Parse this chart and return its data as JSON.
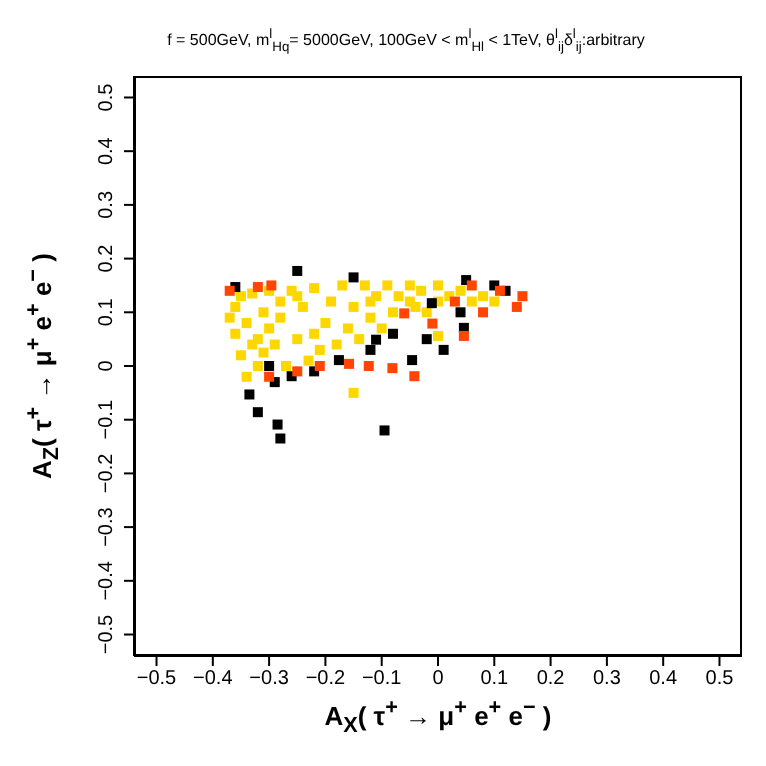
{
  "chart_data": {
    "type": "scatter",
    "title": "f = 500GeV, m$^{l}$$_{Hq}$= 5000GeV, 100GeV < m$^{l}$$_{Hl}$ < 1TeV, θ$^{l}$$_{ij}$δ$^{l}$$_{ij}$:arbitrary",
    "xlabel": "A$_{X}$( τ$^{+}$ → μ$^{+}$ e$^{+}$ e$^{−}$ )",
    "ylabel": "A$_{Z}$( τ$^{+}$ → μ$^{+}$ e$^{+}$ e$^{−}$ )",
    "xlim": [
      -0.54,
      0.54
    ],
    "ylim": [
      -0.54,
      0.54
    ],
    "xticks": [
      {
        "value": -0.5,
        "label": "−0.5"
      },
      {
        "value": -0.4,
        "label": "−0.4"
      },
      {
        "value": -0.3,
        "label": "−0.3"
      },
      {
        "value": -0.2,
        "label": "−0.2"
      },
      {
        "value": -0.1,
        "label": "−0.1"
      },
      0,
      0.1,
      0.2,
      0.3,
      0.4,
      0.5
    ],
    "yticks": [
      {
        "value": -0.5,
        "label": "−0.5"
      },
      {
        "value": -0.4,
        "label": "−0.4"
      },
      {
        "value": -0.3,
        "label": "−0.3"
      },
      {
        "value": -0.2,
        "label": "−0.2"
      },
      {
        "value": -0.1,
        "label": "−0.1"
      },
      0,
      0.1,
      0.2,
      0.3,
      0.4,
      0.5
    ],
    "marker": "square",
    "grid": false,
    "series": [
      {
        "color": "#ffd700",
        "x": [
          -0.37,
          -0.36,
          -0.36,
          -0.35,
          -0.35,
          -0.34,
          -0.34,
          -0.33,
          -0.32,
          -0.32,
          -0.31,
          -0.31,
          -0.3,
          -0.29,
          -0.28,
          -0.27,
          -0.26,
          -0.25,
          -0.24,
          -0.23,
          -0.22,
          -0.21,
          -0.2,
          -0.19,
          -0.18,
          -0.17,
          -0.16,
          -0.15,
          -0.14,
          -0.13,
          -0.12,
          -0.11,
          -0.1,
          -0.09,
          -0.08,
          -0.07,
          -0.05,
          -0.04,
          -0.03,
          -0.02,
          0,
          0,
          0.02,
          0.04,
          0.06,
          0.08,
          0.1,
          -0.28,
          -0.33,
          -0.3,
          -0.25,
          -0.22,
          -0.12,
          -0.05,
          -0.15,
          0
        ],
        "values": [
          0.09,
          0.06,
          0.11,
          0.02,
          0.13,
          -0.02,
          0.08,
          0.135,
          0,
          0.05,
          0.1,
          0.025,
          0.14,
          0.04,
          0.09,
          0,
          0.14,
          0.05,
          0.11,
          0.01,
          0.145,
          0.03,
          0.08,
          0.12,
          0.04,
          0.15,
          0.07,
          0.11,
          0.05,
          0.15,
          0.09,
          0.13,
          0.07,
          0.15,
          0.1,
          0.13,
          0.15,
          0.11,
          0.14,
          0.1,
          0.15,
          0.12,
          0.13,
          0.14,
          0.12,
          0.13,
          0.12,
          0.12,
          0.04,
          0.07,
          0.13,
          0.06,
          0.12,
          0.12,
          -0.05,
          0.056
        ]
      },
      {
        "color": "#000000",
        "x": [
          -0.25,
          -0.15,
          -0.36,
          -0.335,
          -0.32,
          -0.285,
          -0.28,
          -0.095,
          0.01,
          -0.046,
          0.046,
          -0.11,
          -0.176,
          -0.26,
          -0.29,
          -0.011,
          0.05,
          0.1,
          -0.3,
          -0.22,
          -0.12,
          -0.08,
          -0.02,
          0.04,
          0.12
        ],
        "values": [
          0.177,
          0.165,
          0.147,
          -0.053,
          -0.086,
          -0.109,
          -0.135,
          -0.12,
          0.03,
          0.011,
          0.071,
          0.049,
          0.011,
          -0.019,
          -0.03,
          0.117,
          0.16,
          0.15,
          0,
          -0.01,
          0.03,
          0.06,
          0.05,
          0.1,
          0.14
        ]
      },
      {
        "color": "#ff4500",
        "x": [
          -0.37,
          -0.32,
          -0.296,
          -0.042,
          -0.081,
          0.046,
          -0.123,
          -0.21,
          -0.158,
          -0.01,
          -0.06,
          0.06,
          0.11,
          0.15,
          0.14,
          0.03,
          -0.25,
          -0.3,
          0.08
        ],
        "values": [
          0.14,
          0.147,
          0.15,
          -0.019,
          -0.004,
          0.056,
          0,
          0,
          0.004,
          0.079,
          0.098,
          0.15,
          0.14,
          0.13,
          0.11,
          0.12,
          -0.01,
          -0.02,
          0.1
        ]
      }
    ]
  }
}
